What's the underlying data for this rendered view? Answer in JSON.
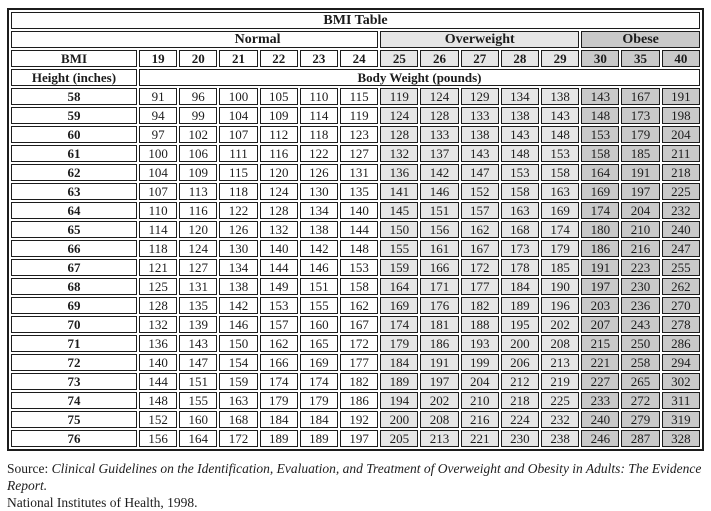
{
  "title": "BMI Table",
  "group_normal": "Normal",
  "group_overweight": "Overweight",
  "group_obese": "Obese",
  "bmi_label": "BMI",
  "height_label": "Height (inches)",
  "body_weight_label": "Body Weight (pounds)",
  "bmi_values": [
    "19",
    "20",
    "21",
    "22",
    "23",
    "24",
    "25",
    "26",
    "27",
    "28",
    "29",
    "30",
    "35",
    "40"
  ],
  "rows": [
    {
      "height": "58",
      "weights": [
        91,
        96,
        100,
        105,
        110,
        115,
        119,
        124,
        129,
        134,
        138,
        143,
        167,
        191
      ]
    },
    {
      "height": "59",
      "weights": [
        94,
        99,
        104,
        109,
        114,
        119,
        124,
        128,
        133,
        138,
        143,
        148,
        173,
        198
      ]
    },
    {
      "height": "60",
      "weights": [
        97,
        102,
        107,
        112,
        118,
        123,
        128,
        133,
        138,
        143,
        148,
        153,
        179,
        204
      ]
    },
    {
      "height": "61",
      "weights": [
        100,
        106,
        111,
        116,
        122,
        127,
        132,
        137,
        143,
        148,
        153,
        158,
        185,
        211
      ]
    },
    {
      "height": "62",
      "weights": [
        104,
        109,
        115,
        120,
        126,
        131,
        136,
        142,
        147,
        153,
        158,
        164,
        191,
        218
      ]
    },
    {
      "height": "63",
      "weights": [
        107,
        113,
        118,
        124,
        130,
        135,
        141,
        146,
        152,
        158,
        163,
        169,
        197,
        225
      ]
    },
    {
      "height": "64",
      "weights": [
        110,
        116,
        122,
        128,
        134,
        140,
        145,
        151,
        157,
        163,
        169,
        174,
        204,
        232
      ]
    },
    {
      "height": "65",
      "weights": [
        114,
        120,
        126,
        132,
        138,
        144,
        150,
        156,
        162,
        168,
        174,
        180,
        210,
        240
      ]
    },
    {
      "height": "66",
      "weights": [
        118,
        124,
        130,
        140,
        142,
        148,
        155,
        161,
        167,
        173,
        179,
        186,
        216,
        247
      ]
    },
    {
      "height": "67",
      "weights": [
        121,
        127,
        134,
        144,
        146,
        153,
        159,
        166,
        172,
        178,
        185,
        191,
        223,
        255
      ]
    },
    {
      "height": "68",
      "weights": [
        125,
        131,
        138,
        149,
        151,
        158,
        164,
        171,
        177,
        184,
        190,
        197,
        230,
        262
      ]
    },
    {
      "height": "69",
      "weights": [
        128,
        135,
        142,
        153,
        155,
        162,
        169,
        176,
        182,
        189,
        196,
        203,
        236,
        270
      ]
    },
    {
      "height": "70",
      "weights": [
        132,
        139,
        146,
        157,
        160,
        167,
        174,
        181,
        188,
        195,
        202,
        207,
        243,
        278
      ]
    },
    {
      "height": "71",
      "weights": [
        136,
        143,
        150,
        162,
        165,
        172,
        179,
        186,
        193,
        200,
        208,
        215,
        250,
        286
      ]
    },
    {
      "height": "72",
      "weights": [
        140,
        147,
        154,
        166,
        169,
        177,
        184,
        191,
        199,
        206,
        213,
        221,
        258,
        294
      ]
    },
    {
      "height": "73",
      "weights": [
        144,
        151,
        159,
        174,
        174,
        182,
        189,
        197,
        204,
        212,
        219,
        227,
        265,
        302
      ]
    },
    {
      "height": "74",
      "weights": [
        148,
        155,
        163,
        179,
        179,
        186,
        194,
        202,
        210,
        218,
        225,
        233,
        272,
        311
      ]
    },
    {
      "height": "75",
      "weights": [
        152,
        160,
        168,
        184,
        184,
        192,
        200,
        208,
        216,
        224,
        232,
        240,
        279,
        319
      ]
    },
    {
      "height": "76",
      "weights": [
        156,
        164,
        172,
        189,
        189,
        197,
        205,
        213,
        221,
        230,
        238,
        246,
        287,
        328
      ]
    }
  ],
  "source": {
    "prefix": "Source: ",
    "citation": "Clinical Guidelines on the Identification, Evaluation, and Treatment of Overweight and Obesity in Adults: The Evidence Report.",
    "line2": "National Institutes of Health, 1998."
  },
  "colors": {
    "overweight_bg": "#e6e6e6",
    "obese_bg": "#c9c9c9",
    "border": "#1c1c1c"
  }
}
